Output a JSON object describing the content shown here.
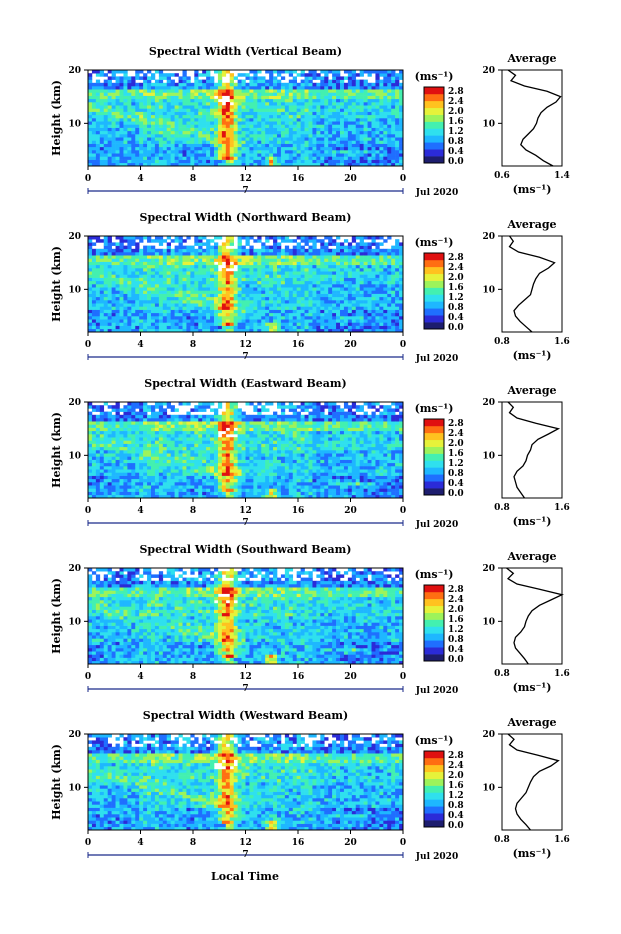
{
  "figure": {
    "xlabel": "Local Time",
    "date_label": "Jul 2020",
    "ylabel": "Height (km)",
    "unit": "(ms⁻¹)",
    "avg_title": "Average"
  },
  "colorscale": {
    "ticks": [
      "0.0",
      "0.4",
      "0.8",
      "1.2",
      "1.6",
      "2.0",
      "2.4",
      "2.8"
    ],
    "colors": [
      "#1d1d6e",
      "#2b2bd8",
      "#1f6fff",
      "#1eb7ff",
      "#2fe0ee",
      "#43f0b0",
      "#9df35a",
      "#e6f23a",
      "#ffc21f",
      "#ff6e12",
      "#e01010"
    ]
  },
  "chart_data": [
    {
      "type": "heatmap",
      "title": "Spectral Width (Vertical Beam)",
      "xlabel": "Local Time",
      "ylabel": "Height (km)",
      "x_ticks": [
        "0",
        "4",
        "8",
        "12",
        "16",
        "20",
        "0"
      ],
      "xlim": [
        0,
        24
      ],
      "y_ticks": [
        "20",
        "10"
      ],
      "ylim": [
        2,
        20
      ],
      "day_label": "7",
      "colorbar": {
        "label": "(ms⁻¹)",
        "range": [
          0.0,
          2.8
        ]
      },
      "profile": {
        "title": "Average",
        "xlabel": "(ms⁻¹)",
        "x_ticks": [
          "0.6",
          "1.4"
        ],
        "xlim": [
          0.6,
          1.4
        ],
        "heights": [
          2,
          3,
          4,
          5,
          6,
          7,
          8,
          9,
          10,
          11,
          12,
          13,
          14,
          15,
          16,
          17,
          18,
          19,
          20
        ],
        "values": [
          1.28,
          1.15,
          1.05,
          0.92,
          0.85,
          0.88,
          0.95,
          1.02,
          1.06,
          1.08,
          1.12,
          1.2,
          1.32,
          1.38,
          1.2,
          0.9,
          0.72,
          0.78,
          0.68
        ]
      }
    },
    {
      "type": "heatmap",
      "title": "Spectral Width (Northward Beam)",
      "xlabel": "Local Time",
      "ylabel": "Height (km)",
      "x_ticks": [
        "0",
        "4",
        "8",
        "12",
        "16",
        "20",
        "0"
      ],
      "xlim": [
        0,
        24
      ],
      "y_ticks": [
        "20",
        "10"
      ],
      "ylim": [
        2,
        20
      ],
      "day_label": "7",
      "colorbar": {
        "label": "(ms⁻¹)",
        "range": [
          0.0,
          2.8
        ]
      },
      "profile": {
        "title": "Average",
        "xlabel": "(ms⁻¹)",
        "x_ticks": [
          "0.8",
          "1.6"
        ],
        "xlim": [
          0.8,
          1.6
        ],
        "heights": [
          2,
          3,
          4,
          5,
          6,
          7,
          8,
          9,
          10,
          11,
          12,
          13,
          14,
          15,
          16,
          17,
          18,
          19,
          20
        ],
        "values": [
          1.2,
          1.12,
          1.04,
          0.98,
          0.96,
          1.02,
          1.1,
          1.18,
          1.2,
          1.22,
          1.25,
          1.3,
          1.42,
          1.5,
          1.3,
          1.02,
          0.9,
          0.95,
          0.9
        ]
      }
    },
    {
      "type": "heatmap",
      "title": "Spectral Width (Eastward Beam)",
      "xlabel": "Local Time",
      "ylabel": "Height (km)",
      "x_ticks": [
        "0",
        "4",
        "8",
        "12",
        "16",
        "20",
        "0"
      ],
      "xlim": [
        0,
        24
      ],
      "y_ticks": [
        "20",
        "10"
      ],
      "ylim": [
        2,
        20
      ],
      "day_label": "7",
      "colorbar": {
        "label": "(ms⁻¹)",
        "range": [
          0.0,
          2.8
        ]
      },
      "profile": {
        "title": "Average",
        "xlabel": "(ms⁻¹)",
        "x_ticks": [
          "0.8",
          "1.6"
        ],
        "xlim": [
          0.8,
          1.6
        ],
        "heights": [
          2,
          3,
          4,
          5,
          6,
          7,
          8,
          9,
          10,
          11,
          12,
          13,
          14,
          15,
          16,
          17,
          18,
          19,
          20
        ],
        "values": [
          1.1,
          1.05,
          1.0,
          0.98,
          0.96,
          1.0,
          1.08,
          1.12,
          1.14,
          1.18,
          1.2,
          1.28,
          1.42,
          1.55,
          1.25,
          1.0,
          0.9,
          0.95,
          0.88
        ]
      }
    },
    {
      "type": "heatmap",
      "title": "Spectral Width (Southward Beam)",
      "xlabel": "Local Time",
      "ylabel": "Height (km)",
      "x_ticks": [
        "0",
        "4",
        "8",
        "12",
        "16",
        "20",
        "0"
      ],
      "xlim": [
        0,
        24
      ],
      "y_ticks": [
        "20",
        "10"
      ],
      "ylim": [
        2,
        20
      ],
      "day_label": "7",
      "colorbar": {
        "label": "(ms⁻¹)",
        "range": [
          0.0,
          2.8
        ]
      },
      "profile": {
        "title": "Average",
        "xlabel": "(ms⁻¹)",
        "x_ticks": [
          "0.8",
          "1.6"
        ],
        "xlim": [
          0.8,
          1.6
        ],
        "heights": [
          2,
          3,
          4,
          5,
          6,
          7,
          8,
          9,
          10,
          11,
          12,
          13,
          14,
          15,
          16,
          17,
          18,
          19,
          20
        ],
        "values": [
          1.15,
          1.1,
          1.04,
          0.98,
          0.96,
          0.98,
          1.05,
          1.1,
          1.12,
          1.15,
          1.2,
          1.3,
          1.45,
          1.6,
          1.3,
          1.0,
          0.88,
          0.95,
          0.86
        ]
      }
    },
    {
      "type": "heatmap",
      "title": "Spectral Width (Westward Beam)",
      "xlabel": "Local Time",
      "ylabel": "Height (km)",
      "x_ticks": [
        "0",
        "4",
        "8",
        "12",
        "16",
        "20",
        "0"
      ],
      "xlim": [
        0,
        24
      ],
      "y_ticks": [
        "20",
        "10"
      ],
      "ylim": [
        2,
        20
      ],
      "day_label": "7",
      "colorbar": {
        "label": "(ms⁻¹)",
        "range": [
          0.0,
          2.8
        ]
      },
      "profile": {
        "title": "Average",
        "xlabel": "(ms⁻¹)",
        "x_ticks": [
          "0.8",
          "1.6"
        ],
        "xlim": [
          0.8,
          1.6
        ],
        "heights": [
          2,
          3,
          4,
          5,
          6,
          7,
          8,
          9,
          10,
          11,
          12,
          13,
          14,
          15,
          16,
          17,
          18,
          19,
          20
        ],
        "values": [
          1.18,
          1.12,
          1.05,
          1.0,
          0.98,
          1.0,
          1.06,
          1.12,
          1.15,
          1.18,
          1.22,
          1.3,
          1.45,
          1.55,
          1.28,
          1.0,
          0.9,
          0.96,
          0.88
        ]
      }
    }
  ]
}
